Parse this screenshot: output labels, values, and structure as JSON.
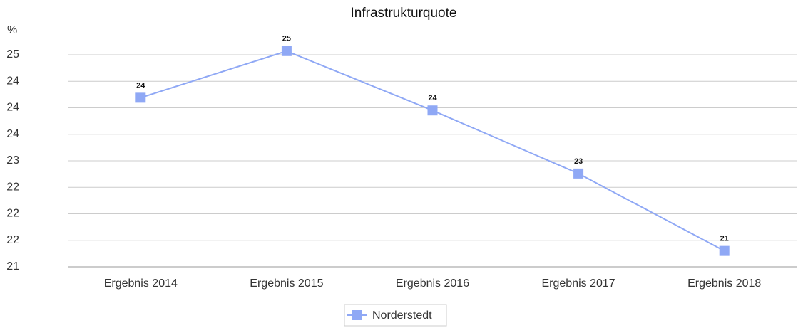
{
  "chart_data": {
    "type": "line",
    "title": "Infrastrukturquote",
    "y_label": "%",
    "categories": [
      "Ergebnis 2014",
      "Ergebnis 2015",
      "Ergebnis 2016",
      "Ergebnis 2017",
      "Ergebnis 2018"
    ],
    "series": [
      {
        "name": "Norderstedt",
        "color": "#8fa8f5",
        "values": [
          24.19,
          25.07,
          23.95,
          22.76,
          21.3
        ],
        "value_labels": [
          "24",
          "25",
          "24",
          "23",
          "21"
        ]
      }
    ],
    "ylim": [
      21,
      25
    ],
    "yticks": [
      21,
      {
        "value": 21.5,
        "label": "22"
      },
      22,
      {
        "value": 22.5,
        "label": "22"
      },
      23,
      {
        "value": 23.5,
        "label": "24"
      },
      24,
      {
        "value": 24.5,
        "label": "24"
      },
      25
    ],
    "grid": true,
    "legend": "bottom"
  }
}
